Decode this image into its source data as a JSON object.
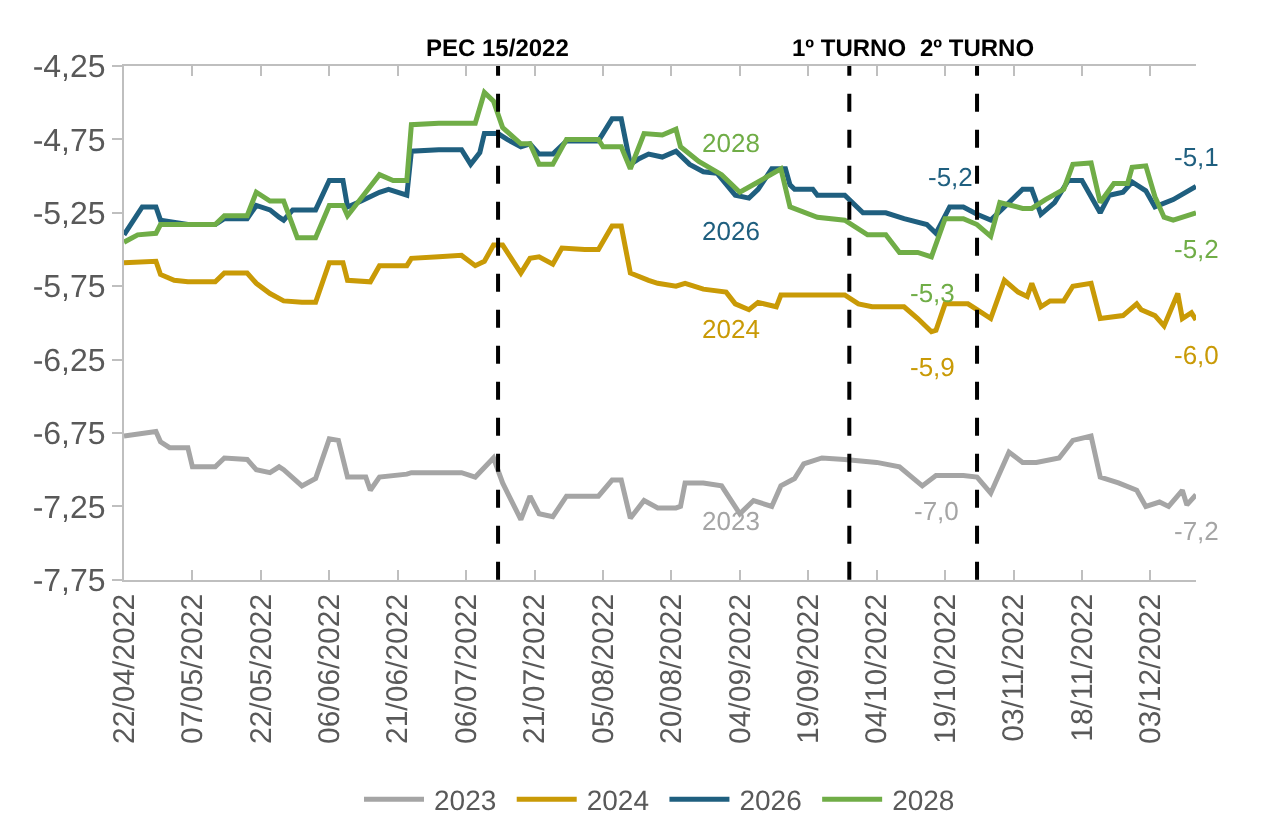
{
  "chart_data": {
    "type": "line",
    "xlim": [
      "2022-04-22",
      "2022-12-13"
    ],
    "xticks": [
      {
        "value": "2022-04-22",
        "label": "22/04/2022"
      },
      {
        "value": "2022-05-07",
        "label": "07/05/2022"
      },
      {
        "value": "2022-05-22",
        "label": "22/05/2022"
      },
      {
        "value": "2022-06-06",
        "label": "06/06/2022"
      },
      {
        "value": "2022-06-21",
        "label": "21/06/2022"
      },
      {
        "value": "2022-07-06",
        "label": "06/07/2022"
      },
      {
        "value": "2022-07-21",
        "label": "21/07/2022"
      },
      {
        "value": "2022-08-05",
        "label": "05/08/2022"
      },
      {
        "value": "2022-08-20",
        "label": "20/08/2022"
      },
      {
        "value": "2022-09-04",
        "label": "04/09/2022"
      },
      {
        "value": "2022-09-19",
        "label": "19/09/2022"
      },
      {
        "value": "2022-10-04",
        "label": "04/10/2022"
      },
      {
        "value": "2022-10-19",
        "label": "19/10/2022"
      },
      {
        "value": "2022-11-03",
        "label": "03/11/2022"
      },
      {
        "value": "2022-11-18",
        "label": "18/11/2022"
      },
      {
        "value": "2022-12-03",
        "label": "03/12/2022"
      }
    ],
    "ylim": [
      -7.75,
      -4.25
    ],
    "yticks": [
      {
        "value": -7.75,
        "label": "-7,75"
      },
      {
        "value": -7.25,
        "label": "-7,25"
      },
      {
        "value": -6.75,
        "label": "-6,75"
      },
      {
        "value": -6.25,
        "label": "-6,25"
      },
      {
        "value": -5.75,
        "label": "-5,75"
      },
      {
        "value": -5.25,
        "label": "-5,25"
      },
      {
        "value": -4.75,
        "label": "-4,75"
      },
      {
        "value": -4.25,
        "label": "-4,25"
      }
    ],
    "grid": false,
    "legend": "bottom",
    "marker": "none",
    "line_style": "solid",
    "series": [
      {
        "name": "2023",
        "color": "#a5a5a5",
        "x": [
          "2022-04-22",
          "2022-04-29",
          "2022-04-30",
          "2022-05-02",
          "2022-05-06",
          "2022-05-07",
          "2022-05-12",
          "2022-05-14",
          "2022-05-19",
          "2022-05-21",
          "2022-05-24",
          "2022-05-26",
          "2022-05-27",
          "2022-05-31",
          "2022-06-03",
          "2022-06-06",
          "2022-06-08",
          "2022-06-10",
          "2022-06-14",
          "2022-06-15",
          "2022-06-17",
          "2022-06-23",
          "2022-06-24",
          "2022-07-05",
          "2022-07-08",
          "2022-07-12",
          "2022-07-14",
          "2022-07-18",
          "2022-07-20",
          "2022-07-22",
          "2022-07-25",
          "2022-07-28",
          "2022-08-04",
          "2022-08-07",
          "2022-08-09",
          "2022-08-11",
          "2022-08-14",
          "2022-08-17",
          "2022-08-21",
          "2022-08-22",
          "2022-08-23",
          "2022-08-27",
          "2022-08-31",
          "2022-09-04",
          "2022-09-07",
          "2022-09-11",
          "2022-09-13",
          "2022-09-16",
          "2022-09-18",
          "2022-09-22",
          "2022-09-27",
          "2022-10-04",
          "2022-10-09",
          "2022-10-14",
          "2022-10-17",
          "2022-10-23",
          "2022-10-26",
          "2022-10-29",
          "2022-11-02",
          "2022-11-05",
          "2022-11-08",
          "2022-11-13",
          "2022-11-16",
          "2022-11-20",
          "2022-11-22",
          "2022-11-26",
          "2022-11-30",
          "2022-12-02",
          "2022-12-05",
          "2022-12-07",
          "2022-12-10",
          "2022-12-11",
          "2022-12-13"
        ],
        "values": [
          -6.77,
          -6.74,
          -6.81,
          -6.85,
          -6.85,
          -6.98,
          -6.98,
          -6.92,
          -6.93,
          -7.0,
          -7.02,
          -6.98,
          -7.0,
          -7.11,
          -7.06,
          -6.79,
          -6.8,
          -7.05,
          -7.05,
          -7.14,
          -7.05,
          -7.03,
          -7.02,
          -7.02,
          -7.05,
          -6.92,
          -7.09,
          -7.34,
          -7.18,
          -7.3,
          -7.32,
          -7.18,
          -7.18,
          -7.07,
          -7.07,
          -7.33,
          -7.21,
          -7.26,
          -7.26,
          -7.25,
          -7.09,
          -7.09,
          -7.11,
          -7.3,
          -7.21,
          -7.25,
          -7.11,
          -7.06,
          -6.96,
          -6.92,
          -6.93,
          -6.95,
          -6.98,
          -7.11,
          -7.04,
          -7.04,
          -7.05,
          -7.16,
          -6.88,
          -6.95,
          -6.95,
          -6.92,
          -6.8,
          -6.77,
          -7.05,
          -7.09,
          -7.14,
          -7.25,
          -7.22,
          -7.25,
          -7.14,
          -7.24,
          -7.17
        ]
      },
      {
        "name": "2024",
        "color": "#c99a06",
        "x": [
          "2022-04-22",
          "2022-04-29",
          "2022-04-30",
          "2022-05-03",
          "2022-05-06",
          "2022-05-12",
          "2022-05-14",
          "2022-05-19",
          "2022-05-21",
          "2022-05-24",
          "2022-05-27",
          "2022-05-31",
          "2022-06-03",
          "2022-06-06",
          "2022-06-09",
          "2022-06-10",
          "2022-06-15",
          "2022-06-17",
          "2022-06-23",
          "2022-06-24",
          "2022-06-30",
          "2022-07-05",
          "2022-07-08",
          "2022-07-10",
          "2022-07-12",
          "2022-07-14",
          "2022-07-18",
          "2022-07-20",
          "2022-07-22",
          "2022-07-25",
          "2022-07-27",
          "2022-08-01",
          "2022-08-04",
          "2022-08-07",
          "2022-08-09",
          "2022-08-11",
          "2022-08-15",
          "2022-08-17",
          "2022-08-21",
          "2022-08-23",
          "2022-08-27",
          "2022-09-01",
          "2022-09-03",
          "2022-09-06",
          "2022-09-08",
          "2022-09-12",
          "2022-09-13",
          "2022-09-27",
          "2022-09-30",
          "2022-10-03",
          "2022-10-10",
          "2022-10-13",
          "2022-10-16",
          "2022-10-17",
          "2022-10-19",
          "2022-10-24",
          "2022-10-26",
          "2022-10-29",
          "2022-11-01",
          "2022-11-04",
          "2022-11-06",
          "2022-11-07",
          "2022-11-09",
          "2022-11-11",
          "2022-11-14",
          "2022-11-16",
          "2022-11-20",
          "2022-11-22",
          "2022-11-27",
          "2022-11-30",
          "2022-12-01",
          "2022-12-04",
          "2022-12-06",
          "2022-12-09",
          "2022-12-10",
          "2022-12-12",
          "2022-12-13"
        ],
        "values": [
          -5.59,
          -5.58,
          -5.67,
          -5.71,
          -5.72,
          -5.72,
          -5.66,
          -5.66,
          -5.73,
          -5.8,
          -5.85,
          -5.86,
          -5.86,
          -5.59,
          -5.59,
          -5.71,
          -5.72,
          -5.61,
          -5.61,
          -5.56,
          -5.55,
          -5.54,
          -5.61,
          -5.58,
          -5.47,
          -5.47,
          -5.66,
          -5.56,
          -5.55,
          -5.6,
          -5.49,
          -5.5,
          -5.5,
          -5.34,
          -5.34,
          -5.66,
          -5.71,
          -5.73,
          -5.75,
          -5.73,
          -5.77,
          -5.79,
          -5.87,
          -5.91,
          -5.86,
          -5.89,
          -5.81,
          -5.81,
          -5.87,
          -5.89,
          -5.89,
          -5.97,
          -6.06,
          -6.05,
          -5.87,
          -5.87,
          -5.91,
          -5.97,
          -5.71,
          -5.79,
          -5.82,
          -5.73,
          -5.89,
          -5.85,
          -5.85,
          -5.75,
          -5.73,
          -5.97,
          -5.95,
          -5.87,
          -5.91,
          -5.95,
          -6.02,
          -5.8,
          -5.97,
          -5.93,
          -5.98
        ]
      },
      {
        "name": "2026",
        "color": "#1f5f7f",
        "x": [
          "2022-04-22",
          "2022-04-26",
          "2022-04-29",
          "2022-04-30",
          "2022-05-06",
          "2022-05-12",
          "2022-05-14",
          "2022-05-19",
          "2022-05-21",
          "2022-05-24",
          "2022-05-26",
          "2022-05-27",
          "2022-05-29",
          "2022-06-03",
          "2022-06-06",
          "2022-06-09",
          "2022-06-10",
          "2022-06-13",
          "2022-06-17",
          "2022-06-19",
          "2022-06-23",
          "2022-06-24",
          "2022-06-30",
          "2022-07-05",
          "2022-07-07",
          "2022-07-09",
          "2022-07-10",
          "2022-07-13",
          "2022-07-15",
          "2022-07-18",
          "2022-07-20",
          "2022-07-22",
          "2022-07-25",
          "2022-07-28",
          "2022-08-04",
          "2022-08-07",
          "2022-08-09",
          "2022-08-11",
          "2022-08-13",
          "2022-08-15",
          "2022-08-18",
          "2022-08-21",
          "2022-08-24",
          "2022-08-27",
          "2022-08-30",
          "2022-09-03",
          "2022-09-06",
          "2022-09-08",
          "2022-09-11",
          "2022-09-14",
          "2022-09-15",
          "2022-09-16",
          "2022-09-20",
          "2022-09-21",
          "2022-09-27",
          "2022-10-01",
          "2022-10-06",
          "2022-10-10",
          "2022-10-15",
          "2022-10-17",
          "2022-10-20",
          "2022-10-23",
          "2022-10-26",
          "2022-10-29",
          "2022-11-01",
          "2022-11-05",
          "2022-11-07",
          "2022-11-09",
          "2022-11-12",
          "2022-11-15",
          "2022-11-18",
          "2022-11-22",
          "2022-11-24",
          "2022-11-27",
          "2022-11-29",
          "2022-12-02",
          "2022-12-04",
          "2022-12-08",
          "2022-12-13"
        ],
        "values": [
          -5.4,
          -5.21,
          -5.21,
          -5.3,
          -5.33,
          -5.33,
          -5.29,
          -5.29,
          -5.2,
          -5.23,
          -5.28,
          -5.3,
          -5.23,
          -5.23,
          -5.03,
          -5.03,
          -5.21,
          -5.17,
          -5.11,
          -5.09,
          -5.13,
          -4.83,
          -4.82,
          -4.82,
          -4.92,
          -4.84,
          -4.71,
          -4.71,
          -4.75,
          -4.8,
          -4.78,
          -4.85,
          -4.85,
          -4.76,
          -4.76,
          -4.61,
          -4.61,
          -4.92,
          -4.88,
          -4.85,
          -4.87,
          -4.83,
          -4.92,
          -4.97,
          -4.98,
          -5.13,
          -5.15,
          -5.09,
          -4.95,
          -4.95,
          -5.06,
          -5.09,
          -5.09,
          -5.13,
          -5.13,
          -5.25,
          -5.25,
          -5.29,
          -5.33,
          -5.39,
          -5.21,
          -5.21,
          -5.26,
          -5.3,
          -5.21,
          -5.09,
          -5.09,
          -5.26,
          -5.18,
          -5.03,
          -5.03,
          -5.25,
          -5.13,
          -5.11,
          -5.04,
          -5.1,
          -5.21,
          -5.16,
          -5.07
        ]
      },
      {
        "name": "2028",
        "color": "#70ad47",
        "x": [
          "2022-04-22",
          "2022-04-25",
          "2022-04-29",
          "2022-04-30",
          "2022-05-12",
          "2022-05-14",
          "2022-05-19",
          "2022-05-21",
          "2022-05-24",
          "2022-05-27",
          "2022-05-30",
          "2022-06-03",
          "2022-06-06",
          "2022-06-09",
          "2022-06-10",
          "2022-06-14",
          "2022-06-17",
          "2022-06-20",
          "2022-06-23",
          "2022-06-24",
          "2022-06-30",
          "2022-07-08",
          "2022-07-10",
          "2022-07-12",
          "2022-07-14",
          "2022-07-18",
          "2022-07-20",
          "2022-07-22",
          "2022-07-25",
          "2022-07-28",
          "2022-08-04",
          "2022-08-05",
          "2022-08-09",
          "2022-08-11",
          "2022-08-14",
          "2022-08-18",
          "2022-08-21",
          "2022-08-22",
          "2022-08-26",
          "2022-08-31",
          "2022-09-04",
          "2022-09-08",
          "2022-09-13",
          "2022-09-15",
          "2022-09-21",
          "2022-09-27",
          "2022-10-02",
          "2022-10-06",
          "2022-10-09",
          "2022-10-13",
          "2022-10-16",
          "2022-10-19",
          "2022-10-23",
          "2022-10-26",
          "2022-10-29",
          "2022-10-31",
          "2022-11-05",
          "2022-11-07",
          "2022-11-10",
          "2022-11-14",
          "2022-11-16",
          "2022-11-20",
          "2022-11-22",
          "2022-11-25",
          "2022-11-28",
          "2022-11-29",
          "2022-12-02",
          "2022-12-04",
          "2022-12-06",
          "2022-12-08",
          "2022-12-13"
        ],
        "values": [
          -5.45,
          -5.4,
          -5.39,
          -5.33,
          -5.33,
          -5.27,
          -5.27,
          -5.11,
          -5.17,
          -5.17,
          -5.42,
          -5.42,
          -5.2,
          -5.2,
          -5.27,
          -5.11,
          -4.99,
          -5.03,
          -5.03,
          -4.65,
          -4.64,
          -4.64,
          -4.43,
          -4.49,
          -4.67,
          -4.78,
          -4.78,
          -4.92,
          -4.92,
          -4.75,
          -4.75,
          -4.8,
          -4.8,
          -4.95,
          -4.71,
          -4.72,
          -4.68,
          -4.8,
          -4.9,
          -4.99,
          -5.11,
          -5.04,
          -4.95,
          -5.21,
          -5.28,
          -5.3,
          -5.4,
          -5.4,
          -5.52,
          -5.52,
          -5.55,
          -5.29,
          -5.29,
          -5.33,
          -5.41,
          -5.18,
          -5.22,
          -5.22,
          -5.16,
          -5.09,
          -4.92,
          -4.91,
          -5.18,
          -5.05,
          -5.05,
          -4.94,
          -4.93,
          -5.14,
          -5.28,
          -5.3,
          -5.25
        ]
      }
    ],
    "ref_lines": [
      {
        "axis": "x",
        "value": "2022-07-13",
        "label": "PEC 15/2022",
        "color": "#000000",
        "line_style": "dashed"
      },
      {
        "axis": "x",
        "value": "2022-09-28",
        "label": "1º TURNO",
        "color": "#000000",
        "line_style": "dashed"
      },
      {
        "axis": "x",
        "value": "2022-10-26",
        "label": "2º TURNO",
        "color": "#000000",
        "line_style": "dashed"
      }
    ],
    "annotations": [
      {
        "text": "-5,2",
        "x": "2022-10-20",
        "y": -5.21
      },
      {
        "text": "-5,3",
        "x": "2022-10-16",
        "y": -5.55
      },
      {
        "text": "-5,9",
        "x": "2022-10-16",
        "y": -6.06
      },
      {
        "text": "-7,0",
        "x": "2022-10-17",
        "y": -7.04
      },
      {
        "text": "-5,1",
        "x": "2022-12-13",
        "y": -5.07
      },
      {
        "text": "-5,2",
        "x": "2022-12-13",
        "y": -5.25
      },
      {
        "text": "-6,0",
        "x": "2022-12-13",
        "y": -5.98
      },
      {
        "text": "-7,2",
        "x": "2022-12-13",
        "y": -7.17
      }
    ]
  }
}
